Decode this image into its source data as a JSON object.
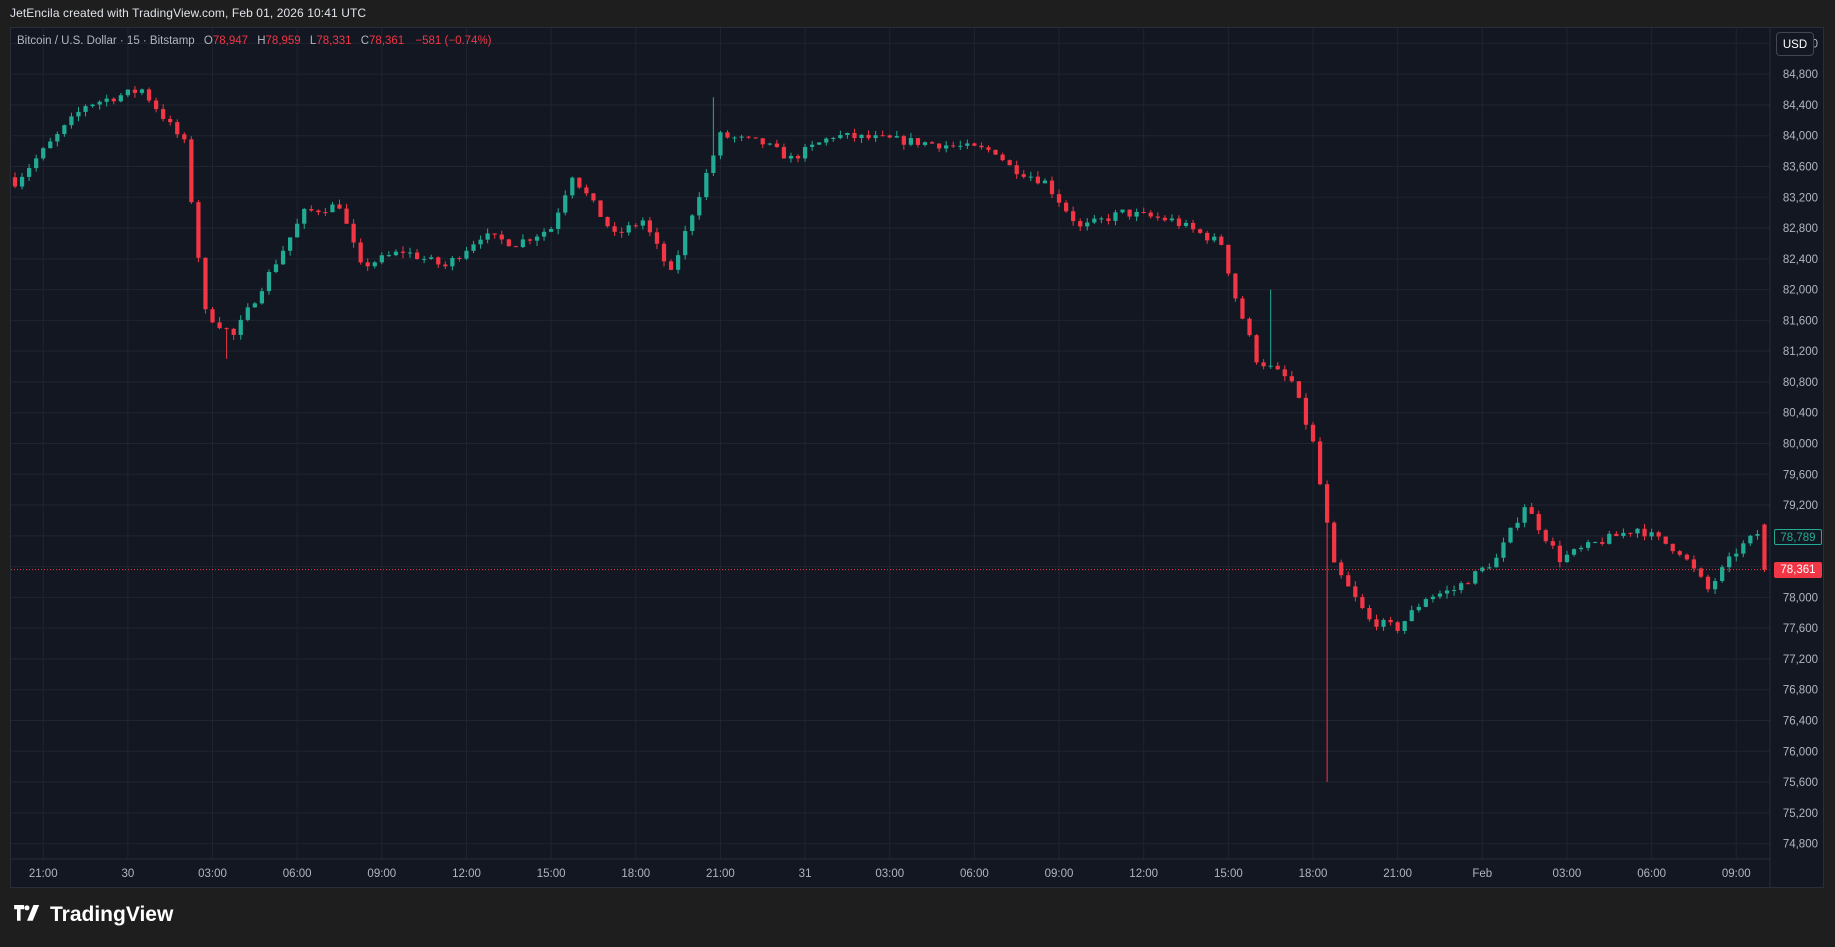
{
  "header": {
    "caption": "JetEncila created with TradingView.com, Feb 01, 2026 10:41 UTC"
  },
  "legend": {
    "symbol": "Bitcoin / U.S. Dollar · 15 · Bitstamp",
    "open_label": "O",
    "open": "78,947",
    "high_label": "H",
    "high": "78,959",
    "low_label": "L",
    "low": "78,331",
    "close_label": "C",
    "close": "78,361",
    "change": "−581 (−0.74%)"
  },
  "toolbar": {
    "currency": "USD"
  },
  "badges": {
    "last_price": "78,361",
    "other_price": "78,789"
  },
  "brand": {
    "name": "TradingView",
    "logo": "tradingview-logo-icon"
  },
  "colors": {
    "up": "#22ab94",
    "down": "#f23645",
    "background": "#131722",
    "grid": "#1f2430",
    "axis_text": "#b2b5be"
  },
  "chart_data": {
    "type": "candlestick",
    "title": "Bitcoin / U.S. Dollar · 15 · Bitstamp",
    "interval": "15",
    "grid": true,
    "ylim": [
      74600,
      85400
    ],
    "y_ticks": [
      "74,800",
      "75,200",
      "75,600",
      "76,000",
      "76,400",
      "76,800",
      "77,200",
      "77,600",
      "78,000",
      "78,400",
      "78,800",
      "79,200",
      "79,600",
      "80,000",
      "80,400",
      "80,800",
      "81,200",
      "81,600",
      "82,000",
      "82,400",
      "82,800",
      "83,200",
      "83,600",
      "84,000",
      "84,400",
      "84,800",
      "85,200"
    ],
    "y_tick_values": [
      74800,
      75200,
      75600,
      76000,
      76400,
      76800,
      77200,
      77600,
      78000,
      78400,
      78800,
      79200,
      79600,
      80000,
      80400,
      80800,
      81200,
      81600,
      82000,
      82400,
      82800,
      83200,
      83600,
      84000,
      84400,
      84800,
      85200
    ],
    "x_ticks": [
      "21:00",
      "30",
      "03:00",
      "06:00",
      "09:00",
      "12:00",
      "15:00",
      "18:00",
      "21:00",
      "31",
      "03:00",
      "06:00",
      "09:00",
      "12:00",
      "15:00",
      "18:00",
      "21:00",
      "Feb",
      "03:00",
      "06:00",
      "09:00"
    ],
    "x_tick_positions": [
      4,
      16,
      28,
      40,
      52,
      64,
      76,
      88,
      100,
      112,
      124,
      136,
      148,
      160,
      172,
      184,
      196,
      208,
      220,
      232,
      244
    ],
    "keypoints": [
      [
        0,
        83400
      ],
      [
        10,
        84400
      ],
      [
        18,
        84600
      ],
      [
        24,
        83900
      ],
      [
        27,
        81700
      ],
      [
        31,
        81400
      ],
      [
        36,
        82200
      ],
      [
        41,
        83000
      ],
      [
        46,
        83100
      ],
      [
        49,
        82300
      ],
      [
        55,
        82500
      ],
      [
        61,
        82300
      ],
      [
        66,
        82700
      ],
      [
        71,
        82600
      ],
      [
        76,
        82800
      ],
      [
        79,
        83500
      ],
      [
        85,
        82700
      ],
      [
        89,
        82900
      ],
      [
        93,
        82200
      ],
      [
        96,
        83000
      ],
      [
        100,
        84000
      ],
      [
        106,
        83900
      ],
      [
        110,
        83700
      ],
      [
        116,
        84000
      ],
      [
        124,
        83950
      ],
      [
        130,
        83900
      ],
      [
        139,
        83800
      ],
      [
        141,
        83600
      ],
      [
        146,
        83400
      ],
      [
        151,
        82800
      ],
      [
        157,
        83000
      ],
      [
        164,
        82900
      ],
      [
        171,
        82600
      ],
      [
        173,
        81900
      ],
      [
        176,
        81100
      ],
      [
        181,
        80800
      ],
      [
        184,
        80000
      ],
      [
        187,
        78400
      ],
      [
        192,
        77700
      ],
      [
        196,
        77600
      ],
      [
        200,
        78000
      ],
      [
        204,
        78100
      ],
      [
        210,
        78500
      ],
      [
        214,
        79200
      ],
      [
        219,
        78500
      ],
      [
        224,
        78700
      ],
      [
        230,
        78900
      ],
      [
        236,
        78600
      ],
      [
        240,
        78100
      ],
      [
        244,
        78600
      ],
      [
        247,
        78830
      ],
      [
        248,
        78361
      ]
    ],
    "candle_count": 249,
    "last_price": 78361,
    "open": 78947,
    "high": 78959,
    "low": 78331,
    "close": 78361,
    "wick_extremes": [
      {
        "index": 186,
        "low": 75600
      },
      {
        "index": 178,
        "high": 82000
      },
      {
        "index": 30,
        "low": 81100
      },
      {
        "index": 99,
        "high": 84500
      }
    ]
  }
}
